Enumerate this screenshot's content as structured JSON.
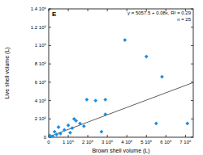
{
  "chart_data": {
    "type": "scatter",
    "title": "E",
    "x_label": "Brown shell volume (L)",
    "y_label": "Live shell volume (L)",
    "annotations": [
      "y = 5057.5 + 0.08x, R² = 0.29",
      "n = 25"
    ],
    "trend_line": {
      "intercept": 5057.5,
      "slope": 0.08
    },
    "color": "#1a8fe3",
    "marker": "diamond",
    "x": [
      3900000,
      5000000,
      5800000,
      5500000,
      7100000,
      2900000,
      2400000,
      2900000,
      1950000,
      2700000,
      1800000,
      1400000,
      1300000,
      1200000,
      1000000,
      800000,
      600000,
      400000,
      200000,
      100000,
      500000,
      1100000,
      300000,
      50000,
      1600000
    ],
    "values": [
      1060000,
      880000,
      660000,
      150000,
      150000,
      250000,
      400000,
      410000,
      410000,
      60000,
      120000,
      180000,
      200000,
      100000,
      130000,
      80000,
      40000,
      30000,
      10000,
      5000,
      110000,
      50000,
      60000,
      20000,
      150000
    ],
    "xlim": [
      0,
      7400000
    ],
    "ylim": [
      0,
      1400000
    ],
    "xticks": [
      0,
      {
        "value": 1000000,
        "label": "1 10⁶"
      },
      {
        "value": 2000000,
        "label": "2 10⁶"
      },
      {
        "value": 3000000,
        "label": "3 10⁶"
      },
      {
        "value": 4000000,
        "label": "4 10⁶"
      },
      {
        "value": 5000000,
        "label": "5 10⁶"
      },
      {
        "value": 6000000,
        "label": "6 10⁶"
      },
      {
        "value": 7000000,
        "label": "7 10⁶"
      }
    ],
    "yticks": [
      0,
      {
        "value": 200000,
        "label": "2 10⁵"
      },
      {
        "value": 400000,
        "label": "4 10⁵"
      },
      {
        "value": 600000,
        "label": "6 10⁵"
      },
      {
        "value": 800000,
        "label": "8 10⁵"
      },
      {
        "value": 1000000,
        "label": "1 10⁶"
      },
      {
        "value": 1200000,
        "label": "1.2 10⁶"
      },
      {
        "value": 1400000,
        "label": "1.4 10⁶"
      }
    ],
    "grid": false
  }
}
